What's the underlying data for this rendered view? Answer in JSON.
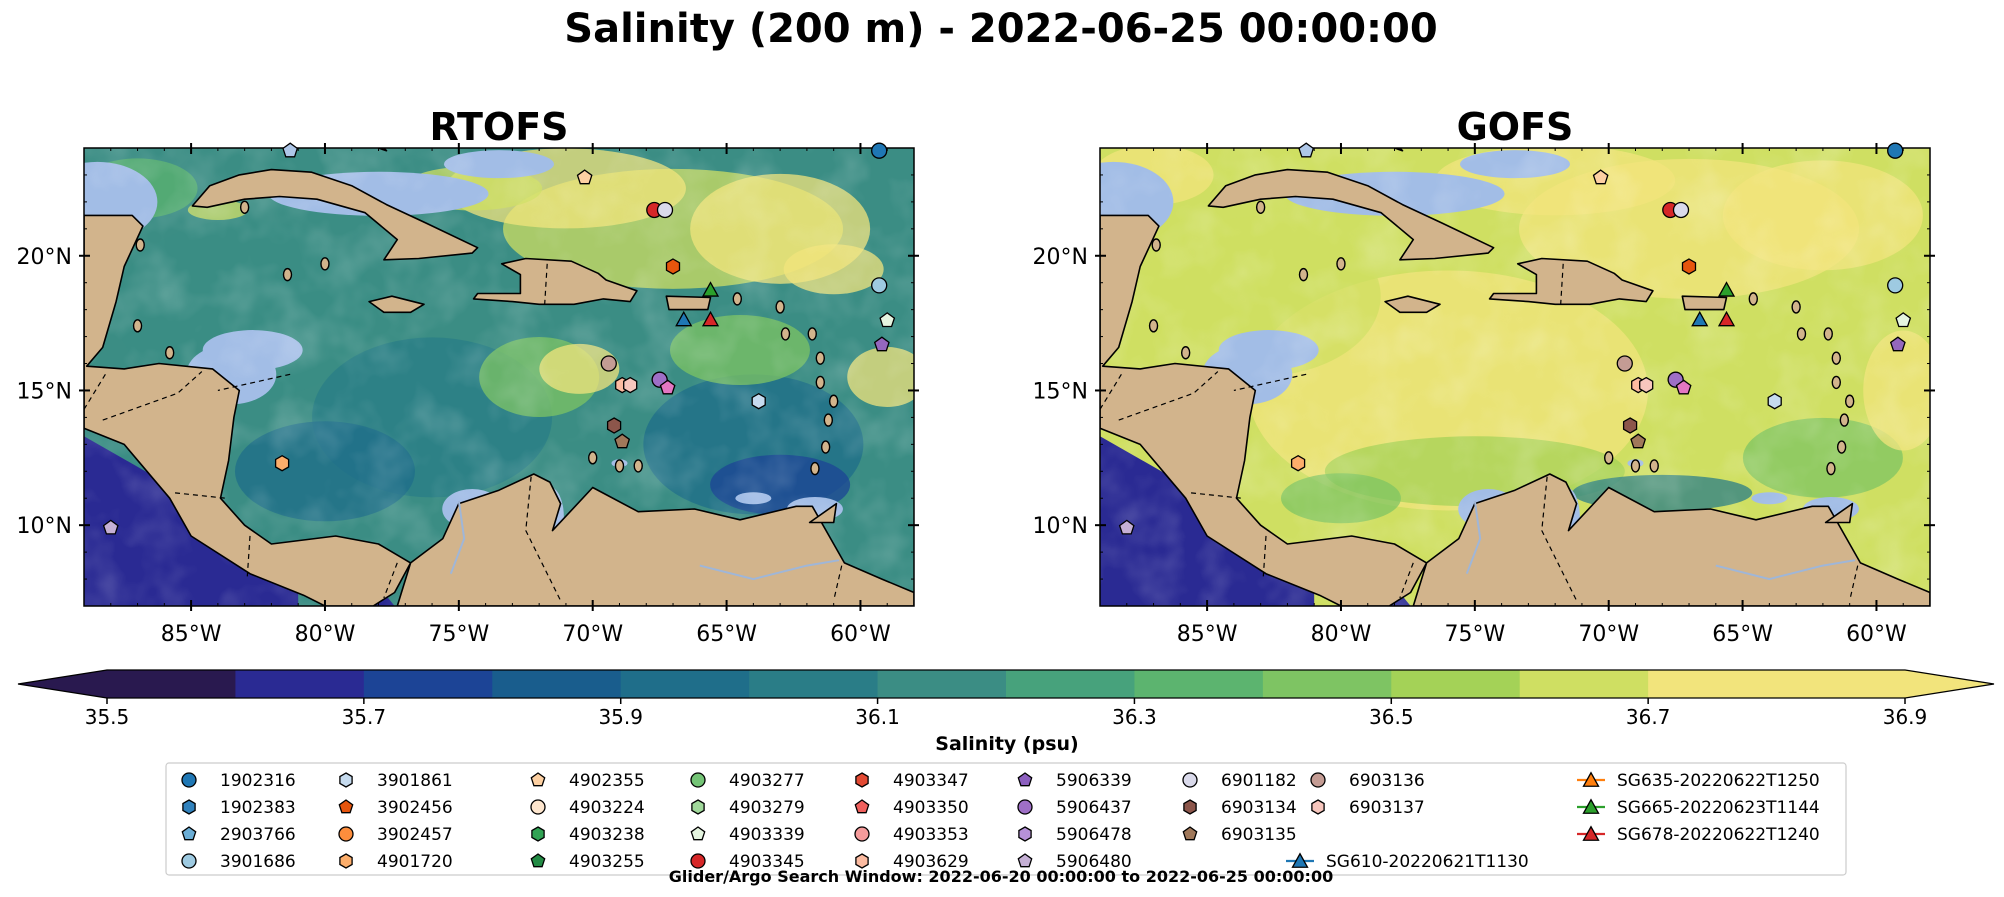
{
  "figure": {
    "title": "Salinity (200 m) - 2022-06-25 00:00:00",
    "footer": "Glider/Argo Search Window: 2022-06-20 00:00:00 to 2022-06-25 00:00:00"
  },
  "colors": {
    "land": "#d2b48c",
    "shallow_water": "#a2bde6",
    "scale": [
      "#29194f",
      "#2a2a93",
      "#1c4496",
      "#195d8d",
      "#1f6e8a",
      "#2a7d87",
      "#3b8d84",
      "#47a27c",
      "#5cb46f",
      "#7ec463",
      "#a4d257",
      "#cfdf62",
      "#f2e47c"
    ],
    "track_blue": "#1f77b4",
    "track_orange": "#ff7f0e",
    "track_green": "#2ca02c",
    "track_red": "#d62728"
  },
  "chart_data": [
    {
      "type": "heatmap",
      "title": "RTOFS",
      "variable": "Salinity at 200 m",
      "xlim": [
        -89,
        -58
      ],
      "ylim": [
        7,
        24
      ],
      "xticks": [
        "85°W",
        "80°W",
        "75°W",
        "70°W",
        "65°W",
        "60°W"
      ],
      "yticks": [
        "10°N",
        "15°N",
        "20°N"
      ],
      "field_description": "predominantly 35.8–36.2 psu in the central and western basin, 36.4–36.9 psu in the northeastern Caribbean and Atlantic north of the Greater Antilles, below 35.6 psu in the Pacific southwest corner",
      "dominant_level": 35.95
    },
    {
      "type": "heatmap",
      "title": "GOFS",
      "variable": "Salinity at 200 m",
      "xlim": [
        -89,
        -58
      ],
      "ylim": [
        7,
        24
      ],
      "xticks": [
        "85°W",
        "80°W",
        "75°W",
        "70°W",
        "65°W",
        "60°W"
      ],
      "yticks": [
        "10°N",
        "15°N",
        "20°N"
      ],
      "field_description": "predominantly 36.4–36.7 psu across most of the basin, 36.8–36.9 psu north of the Greater Antilles, lower values near the southern coast and below 35.6 psu in the Pacific southwest corner",
      "dominant_level": 36.5
    }
  ],
  "colorbar": {
    "label": "Salinity (psu)",
    "min": 35.5,
    "max": 36.9,
    "step": 0.1,
    "extend": "both",
    "tick_labels": [
      "35.5",
      "35.7",
      "35.9",
      "36.1",
      "36.3",
      "36.5",
      "36.7",
      "36.9"
    ]
  },
  "observations": [
    {
      "id": "1902316",
      "marker": "circle",
      "color": "#1f77b4",
      "lon": -59.3,
      "lat": 23.9
    },
    {
      "id": "2903766",
      "marker": "pentagon",
      "color": "#aec7e8",
      "lon": -81.3,
      "lat": 23.9
    },
    {
      "id": "3901686",
      "marker": "circle",
      "color": "#9ecae1",
      "lon": -59.3,
      "lat": 18.9
    },
    {
      "id": "3901861",
      "marker": "hexagon",
      "color": "#c6dbef",
      "lon": -63.8,
      "lat": 14.6
    },
    {
      "id": "4902355",
      "marker": "pentagon",
      "color": "#fdd0a2",
      "lon": -70.3,
      "lat": 22.9
    },
    {
      "id": "4901720",
      "marker": "hexagon",
      "color": "#fdae6b",
      "lon": -81.6,
      "lat": 12.3
    },
    {
      "id": "4903339",
      "marker": "pentagon",
      "color": "#e5f5e0",
      "lon": -59.0,
      "lat": 17.6
    },
    {
      "id": "4903345",
      "marker": "circle",
      "color": "#d62728",
      "lon": -67.7,
      "lat": 21.7
    },
    {
      "id": "6901182",
      "marker": "circle",
      "color": "#dadaeb",
      "lon": -67.3,
      "lat": 21.7
    },
    {
      "id": "4903347",
      "marker": "hexagon",
      "color": "#e6550d",
      "lon": -67.0,
      "lat": 19.6
    },
    {
      "id": "6903136",
      "marker": "circle",
      "color": "#c49c94",
      "lon": -69.4,
      "lat": 16.0
    },
    {
      "id": "4903629",
      "marker": "hexagon",
      "color": "#fcbba1",
      "lon": -68.9,
      "lat": 15.2
    },
    {
      "id": "6903137",
      "marker": "hexagon",
      "color": "#f7c6bd",
      "lon": -68.6,
      "lat": 15.2
    },
    {
      "id": "5906437",
      "marker": "circle",
      "color": "#9e6fc6",
      "lon": -67.5,
      "lat": 15.4
    },
    {
      "id": "4903350",
      "marker": "pentagon",
      "color": "#e377c2",
      "lon": -67.2,
      "lat": 15.1
    },
    {
      "id": "6903134",
      "marker": "hexagon",
      "color": "#8c564b",
      "lon": -69.2,
      "lat": 13.7
    },
    {
      "id": "6903135",
      "marker": "pentagon",
      "color": "#a0785a",
      "lon": -68.9,
      "lat": 13.1
    },
    {
      "id": "5906339",
      "marker": "pentagon",
      "color": "#9467bd",
      "lon": -59.2,
      "lat": 16.7
    },
    {
      "id": "5906480",
      "marker": "pentagon",
      "color": "#c5b0d5",
      "lon": -88.0,
      "lat": 9.9
    },
    {
      "id": "SG610-20220621T1130",
      "marker": "triangle",
      "color": "#1f77b4",
      "lon": -66.6,
      "lat": 17.6
    },
    {
      "id": "SG665-20220623T1144",
      "marker": "triangle",
      "color": "#2ca02c",
      "lon": -65.6,
      "lat": 18.7
    },
    {
      "id": "SG678-20220622T1240",
      "marker": "triangle",
      "color": "#d62728",
      "lon": -65.6,
      "lat": 17.6
    }
  ],
  "legend": {
    "columns": [
      [
        {
          "label": "1902316",
          "marker": "circle",
          "color": "#1f77b4"
        },
        {
          "label": "1902383",
          "marker": "hexagon",
          "color": "#3182bd"
        },
        {
          "label": "2903766",
          "marker": "pentagon",
          "color": "#6baed6"
        },
        {
          "label": "3901686",
          "marker": "circle",
          "color": "#9ecae1"
        }
      ],
      [
        {
          "label": "3901861",
          "marker": "hexagon",
          "color": "#c6dbef"
        },
        {
          "label": "3902456",
          "marker": "pentagon",
          "color": "#e6550d"
        },
        {
          "label": "3902457",
          "marker": "circle",
          "color": "#fd8d3c"
        },
        {
          "label": "4901720",
          "marker": "hexagon",
          "color": "#fdae6b"
        }
      ],
      [
        {
          "label": "4902355",
          "marker": "pentagon",
          "color": "#fdd0a2"
        },
        {
          "label": "4903224",
          "marker": "circle",
          "color": "#fee6ce"
        },
        {
          "label": "4903238",
          "marker": "hexagon",
          "color": "#31a354"
        },
        {
          "label": "4903255",
          "marker": "pentagon",
          "color": "#238b45"
        }
      ],
      [
        {
          "label": "4903277",
          "marker": "circle",
          "color": "#74c476"
        },
        {
          "label": "4903279",
          "marker": "hexagon",
          "color": "#a1d99b"
        },
        {
          "label": "4903339",
          "marker": "pentagon",
          "color": "#e5f5e0"
        },
        {
          "label": "4903345",
          "marker": "circle",
          "color": "#d62728"
        }
      ],
      [
        {
          "label": "4903347",
          "marker": "hexagon",
          "color": "#e34a33"
        },
        {
          "label": "4903350",
          "marker": "pentagon",
          "color": "#f0605d"
        },
        {
          "label": "4903353",
          "marker": "circle",
          "color": "#f59b9b"
        },
        {
          "label": "4903629",
          "marker": "hexagon",
          "color": "#fcbba1"
        }
      ],
      [
        {
          "label": "5906339",
          "marker": "pentagon",
          "color": "#8c5fbf"
        },
        {
          "label": "5906437",
          "marker": "circle",
          "color": "#9e6fc6"
        },
        {
          "label": "5906478",
          "marker": "hexagon",
          "color": "#b691d9"
        },
        {
          "label": "5906480",
          "marker": "pentagon",
          "color": "#c5b0d5"
        }
      ],
      [
        {
          "label": "6901182",
          "marker": "circle",
          "color": "#dadaeb"
        },
        {
          "label": "6903134",
          "marker": "hexagon",
          "color": "#8c564b"
        },
        {
          "label": "6903135",
          "marker": "pentagon",
          "color": "#a0785a"
        },
        {
          "label": "SG610-20220621T1130",
          "marker": "line-triangle",
          "color": "#1f77b4"
        }
      ],
      [
        {
          "label": "6903136",
          "marker": "circle",
          "color": "#c49c94"
        },
        {
          "label": "6903137",
          "marker": "hexagon",
          "color": "#f7c6bd"
        }
      ],
      [
        {
          "label": "SG635-20220622T1250",
          "marker": "line-triangle",
          "color": "#ff7f0e"
        },
        {
          "label": "SG665-20220623T1144",
          "marker": "line-triangle",
          "color": "#2ca02c"
        },
        {
          "label": "SG678-20220622T1240",
          "marker": "line-triangle",
          "color": "#d62728"
        }
      ]
    ]
  }
}
